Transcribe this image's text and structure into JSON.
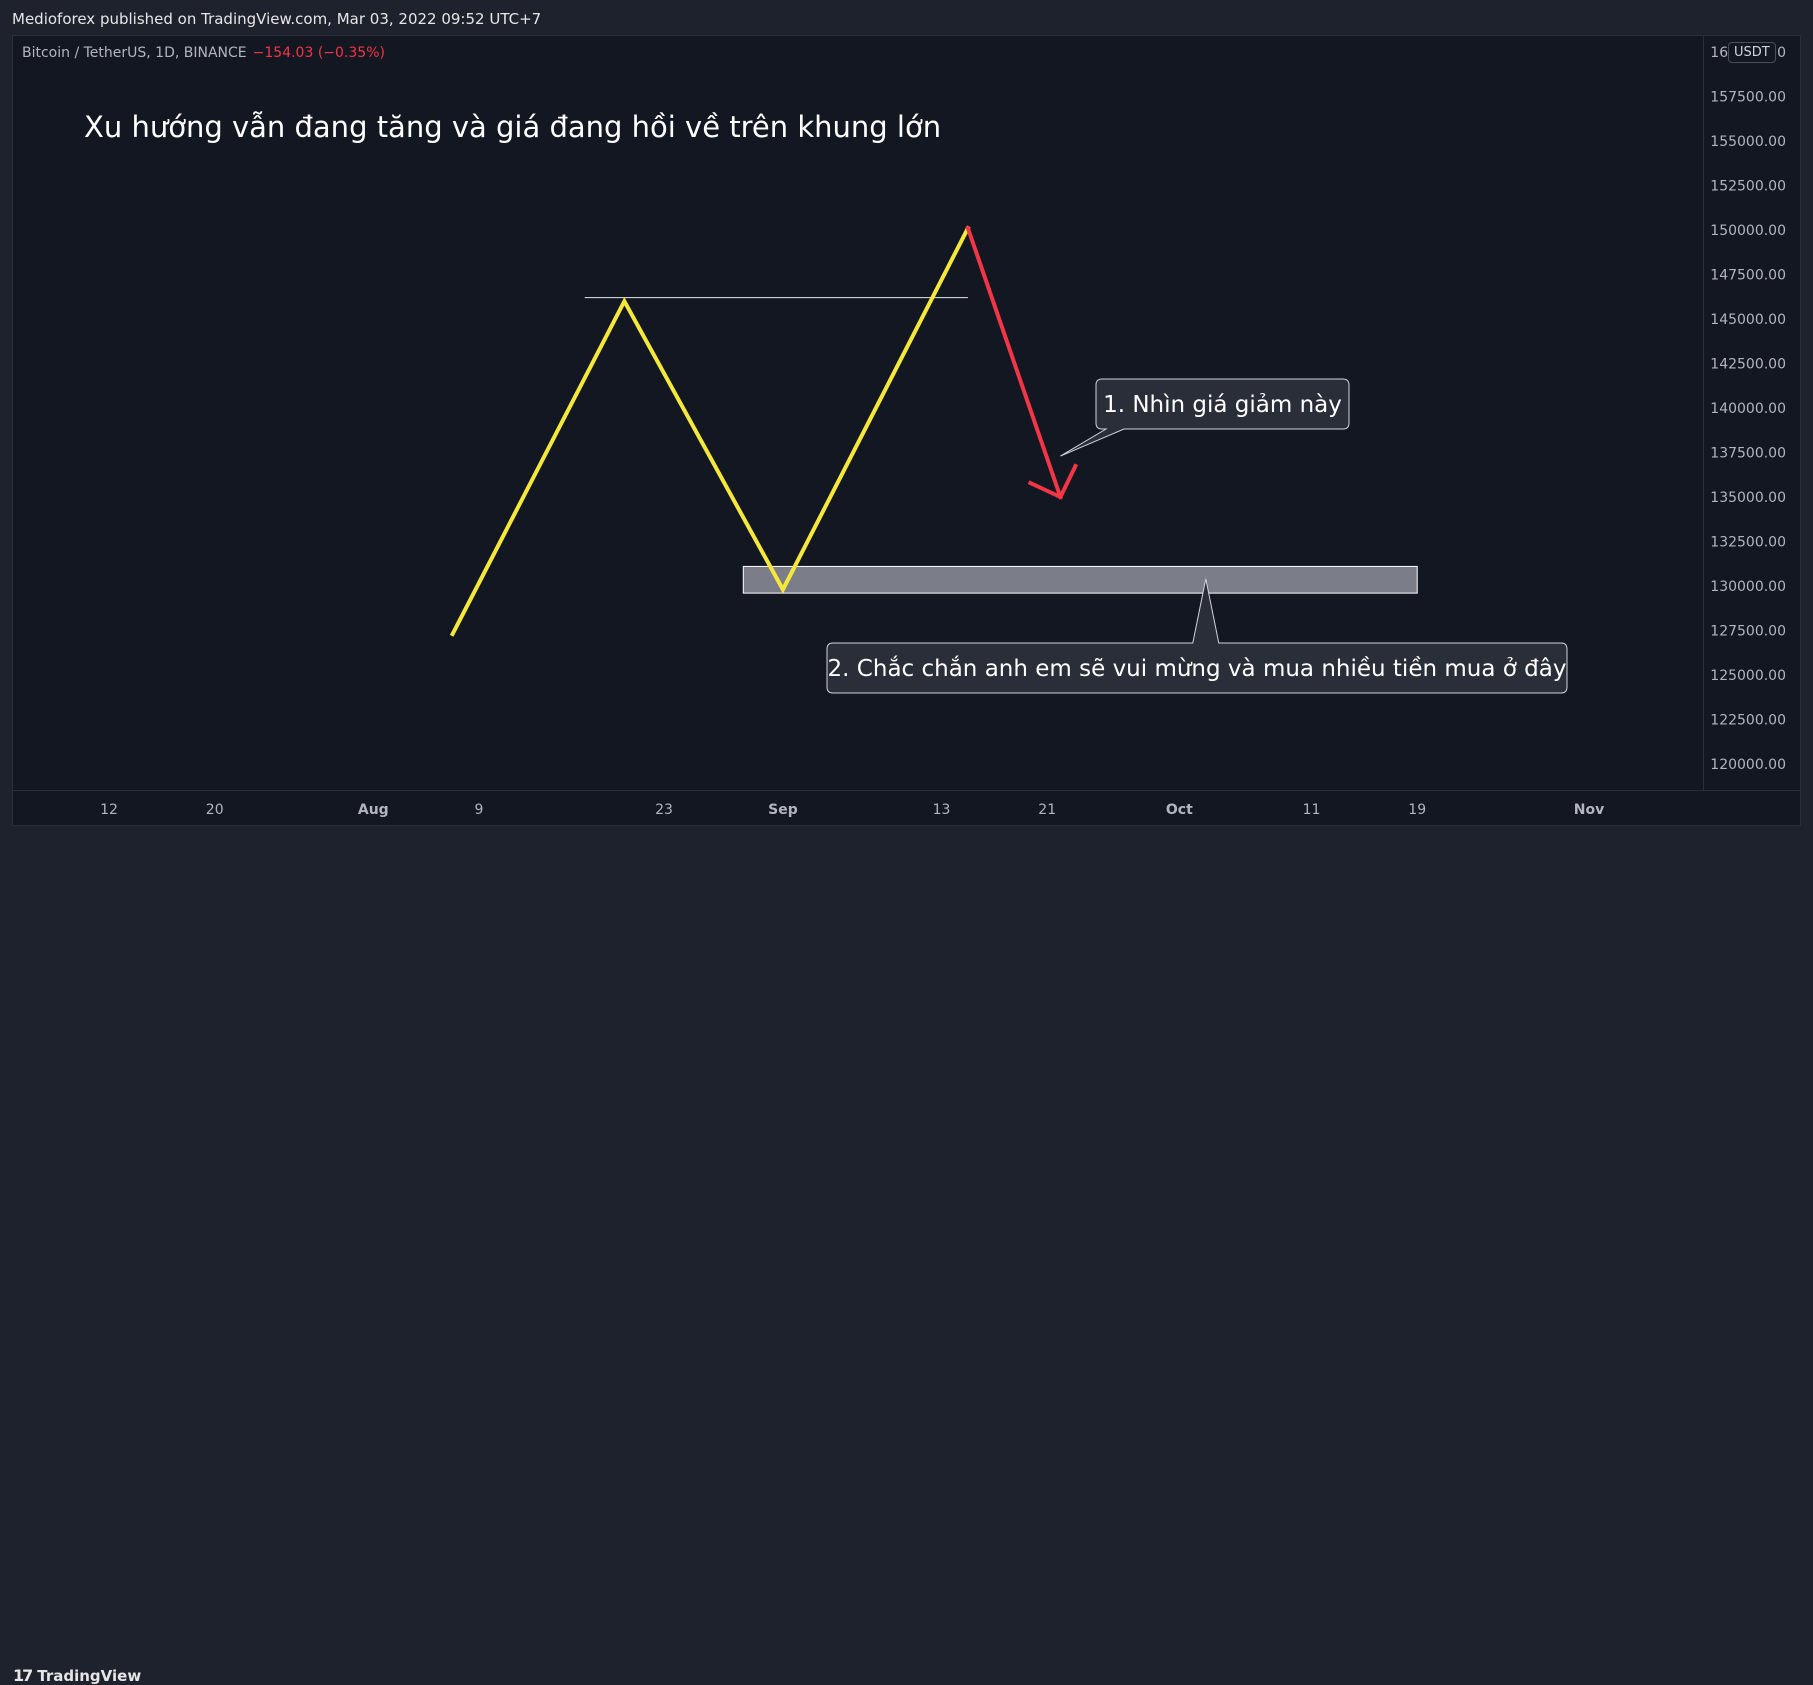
{
  "header": {
    "publish_text": "Medioforex published on TradingView.com, Mar 03, 2022 09:52 UTC+7"
  },
  "symbol": {
    "name": "Bitcoin / TetherUS, 1D, BINANCE",
    "change": "−154.03 (−0.35%)"
  },
  "currency_badge": "USDT",
  "footer": {
    "brand": "TradingView",
    "logo_mark": "17"
  },
  "colors": {
    "background": "#131722",
    "up_leg": "#f5e83b",
    "down_leg": "#f23645",
    "text": "#ffffff",
    "axis_text": "#b2b5be"
  },
  "chart_data": {
    "type": "line",
    "title": "Xu hướng vẫn đang tăng và giá đang hồi về trên khung lớn",
    "xlabel": "",
    "ylabel": "",
    "ylim": [
      118000,
      160000
    ],
    "y_ticks": [
      {
        "value": 120000,
        "label": "120000.00"
      },
      {
        "value": 122500,
        "label": "122500.00"
      },
      {
        "value": 125000,
        "label": "125000.00"
      },
      {
        "value": 127500,
        "label": "127500.00"
      },
      {
        "value": 130000,
        "label": "130000.00"
      },
      {
        "value": 132500,
        "label": "132500.00"
      },
      {
        "value": 135000,
        "label": "135000.00"
      },
      {
        "value": 137500,
        "label": "137500.00"
      },
      {
        "value": 140000,
        "label": "140000.00"
      },
      {
        "value": 142500,
        "label": "142500.00"
      },
      {
        "value": 145000,
        "label": "145000.00"
      },
      {
        "value": 147500,
        "label": "147500.00"
      },
      {
        "value": 150000,
        "label": "150000.00"
      },
      {
        "value": 152500,
        "label": "152500.00"
      },
      {
        "value": 155000,
        "label": "155000.00"
      },
      {
        "value": 157500,
        "label": "157500.00"
      },
      {
        "value": 160000,
        "label": "160000.00"
      }
    ],
    "x_ticks": [
      {
        "date": "2021-07-12",
        "label": "12",
        "bold": false
      },
      {
        "date": "2021-07-20",
        "label": "20",
        "bold": false
      },
      {
        "date": "2021-08-01",
        "label": "Aug",
        "bold": true
      },
      {
        "date": "2021-08-09",
        "label": "9",
        "bold": false
      },
      {
        "date": "2021-08-23",
        "label": "23",
        "bold": false
      },
      {
        "date": "2021-09-01",
        "label": "Sep",
        "bold": true
      },
      {
        "date": "2021-09-13",
        "label": "13",
        "bold": false
      },
      {
        "date": "2021-09-21",
        "label": "21",
        "bold": false
      },
      {
        "date": "2021-10-01",
        "label": "Oct",
        "bold": true
      },
      {
        "date": "2021-10-11",
        "label": "11",
        "bold": false
      },
      {
        "date": "2021-10-19",
        "label": "19",
        "bold": false
      },
      {
        "date": "2021-11-01",
        "label": "Nov",
        "bold": true
      }
    ],
    "series": [
      {
        "values": [
          {
            "x": "2021-08-07",
            "y": 127300
          },
          {
            "x": "2021-08-20",
            "y": 146000
          },
          {
            "x": "2021-09-01",
            "y": 129800
          },
          {
            "x": "2021-09-15",
            "y": 150100
          }
        ]
      },
      {
        "values": [
          {
            "x": "2021-09-15",
            "y": 150100
          },
          {
            "x": "2021-09-22",
            "y": 135000
          }
        ]
      }
    ],
    "resistance_line": {
      "x_start": "2021-08-17",
      "x_end": "2021-09-15",
      "y": 146200
    },
    "support_zone": {
      "x_start": "2021-08-29",
      "x_end": "2021-10-19",
      "y_low": 129600,
      "y_high": 131100
    },
    "annotations": [
      {
        "text": "1. Nhìn giá giảm này",
        "target_x": "2021-09-22",
        "target_y": 137300
      },
      {
        "text": "2. Chắc chắn anh em sẽ vui mừng và mua nhiều tiền mua ở đây",
        "target_x": "2021-10-03",
        "target_y": 130400
      }
    ],
    "grid": false
  }
}
